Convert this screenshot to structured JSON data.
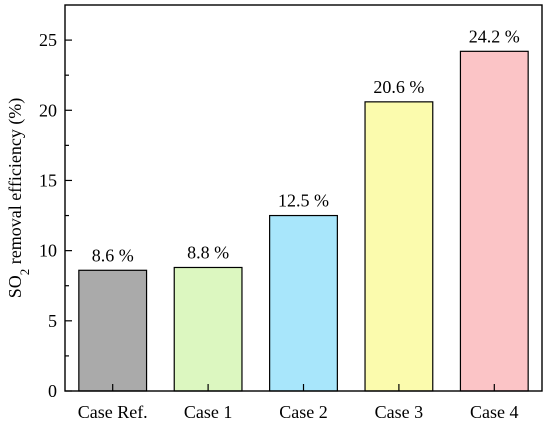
{
  "chart_data": {
    "type": "bar",
    "categories": [
      "Case Ref.",
      "Case 1",
      "Case 2",
      "Case 3",
      "Case 4"
    ],
    "values": [
      8.6,
      8.8,
      12.5,
      20.6,
      24.2
    ],
    "data_labels": [
      "8.6 %",
      "8.8 %",
      "12.5 %",
      "20.6 %",
      "24.2 %"
    ],
    "bar_colors": [
      "#aaaaaa",
      "#dcf7c0",
      "#a8e6fb",
      "#fbfbad",
      "#fbc4c6"
    ],
    "title": "",
    "xlabel": "",
    "ylabel": {
      "main": "SO",
      "subscript": "2",
      "rest": " removal efficiency (%)"
    },
    "ylim": [
      0,
      27.5
    ],
    "yticks": [
      0,
      5,
      10,
      15,
      20,
      25
    ],
    "ytick_labels": [
      "0",
      "5",
      "10",
      "15",
      "20",
      "25"
    ],
    "grid": false,
    "legend": false,
    "frame": "box"
  }
}
